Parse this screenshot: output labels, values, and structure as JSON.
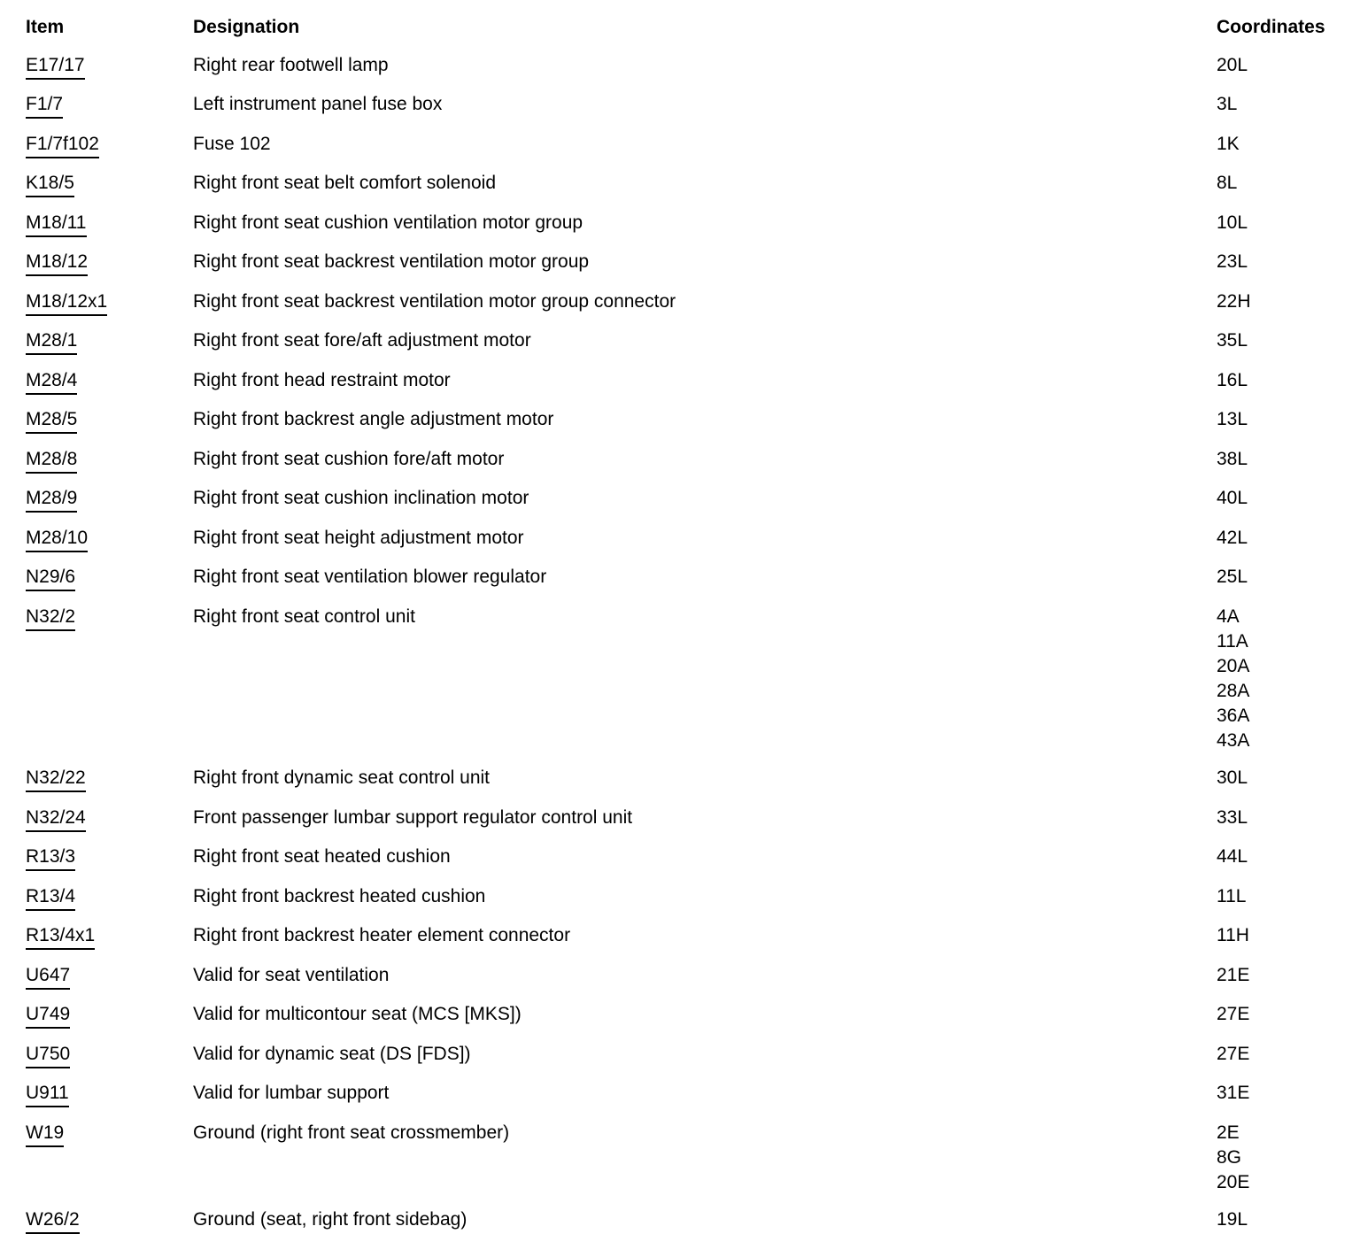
{
  "text_color": "#000000",
  "background_color": "#ffffff",
  "table": {
    "columns": {
      "item": "Item",
      "designation": "Designation",
      "coordinates": "Coordinates"
    },
    "rows": [
      {
        "item": "E17/17",
        "designation": "Right rear footwell lamp",
        "coordinates": [
          "20L"
        ]
      },
      {
        "item": "F1/7",
        "designation": "Left instrument panel fuse box",
        "coordinates": [
          "3L"
        ]
      },
      {
        "item": "F1/7f102",
        "designation": "Fuse 102",
        "coordinates": [
          "1K"
        ]
      },
      {
        "item": "K18/5",
        "designation": "Right front seat belt comfort solenoid",
        "coordinates": [
          "8L"
        ]
      },
      {
        "item": "M18/11",
        "designation": "Right front seat cushion ventilation motor group",
        "coordinates": [
          "10L"
        ]
      },
      {
        "item": "M18/12",
        "designation": "Right front seat backrest ventilation motor group",
        "coordinates": [
          "23L"
        ]
      },
      {
        "item": "M18/12x1",
        "designation": "Right front seat backrest ventilation motor group connector",
        "coordinates": [
          "22H"
        ]
      },
      {
        "item": "M28/1",
        "designation": "Right front seat fore/aft adjustment motor",
        "coordinates": [
          "35L"
        ]
      },
      {
        "item": "M28/4",
        "designation": "Right front head restraint motor",
        "coordinates": [
          "16L"
        ]
      },
      {
        "item": "M28/5",
        "designation": "Right front backrest angle adjustment motor",
        "coordinates": [
          "13L"
        ]
      },
      {
        "item": "M28/8",
        "designation": "Right front seat cushion fore/aft motor",
        "coordinates": [
          "38L"
        ]
      },
      {
        "item": "M28/9",
        "designation": "Right front seat cushion inclination motor",
        "coordinates": [
          "40L"
        ]
      },
      {
        "item": "M28/10",
        "designation": "Right front seat height adjustment motor",
        "coordinates": [
          "42L"
        ]
      },
      {
        "item": "N29/6",
        "designation": "Right front seat ventilation blower regulator",
        "coordinates": [
          "25L"
        ]
      },
      {
        "item": "N32/2",
        "designation": "Right front seat control unit",
        "coordinates": [
          "4A",
          "11A",
          "20A",
          "28A",
          "36A",
          "43A"
        ]
      },
      {
        "item": "N32/22",
        "designation": "Right front dynamic seat control unit",
        "coordinates": [
          "30L"
        ]
      },
      {
        "item": "N32/24",
        "designation": "Front passenger lumbar support regulator control unit",
        "coordinates": [
          "33L"
        ]
      },
      {
        "item": "R13/3",
        "designation": "Right front seat heated cushion",
        "coordinates": [
          "44L"
        ]
      },
      {
        "item": "R13/4",
        "designation": "Right front backrest heated cushion",
        "coordinates": [
          "11L"
        ]
      },
      {
        "item": "R13/4x1",
        "designation": "Right front backrest heater element connector",
        "coordinates": [
          "11H"
        ]
      },
      {
        "item": "U647",
        "designation": "Valid for seat ventilation",
        "coordinates": [
          "21E"
        ]
      },
      {
        "item": "U749",
        "designation": "Valid for multicontour seat (MCS [MKS])",
        "coordinates": [
          "27E"
        ]
      },
      {
        "item": "U750",
        "designation": "Valid for dynamic seat (DS [FDS])",
        "coordinates": [
          "27E"
        ]
      },
      {
        "item": "U911",
        "designation": "Valid for lumbar support",
        "coordinates": [
          "31E"
        ]
      },
      {
        "item": "W19",
        "designation": "Ground (right front seat crossmember)",
        "coordinates": [
          "2E",
          "8G",
          "20E"
        ]
      },
      {
        "item": "W26/2",
        "designation": "Ground (seat, right front sidebag)",
        "coordinates": [
          "19L"
        ]
      }
    ]
  }
}
